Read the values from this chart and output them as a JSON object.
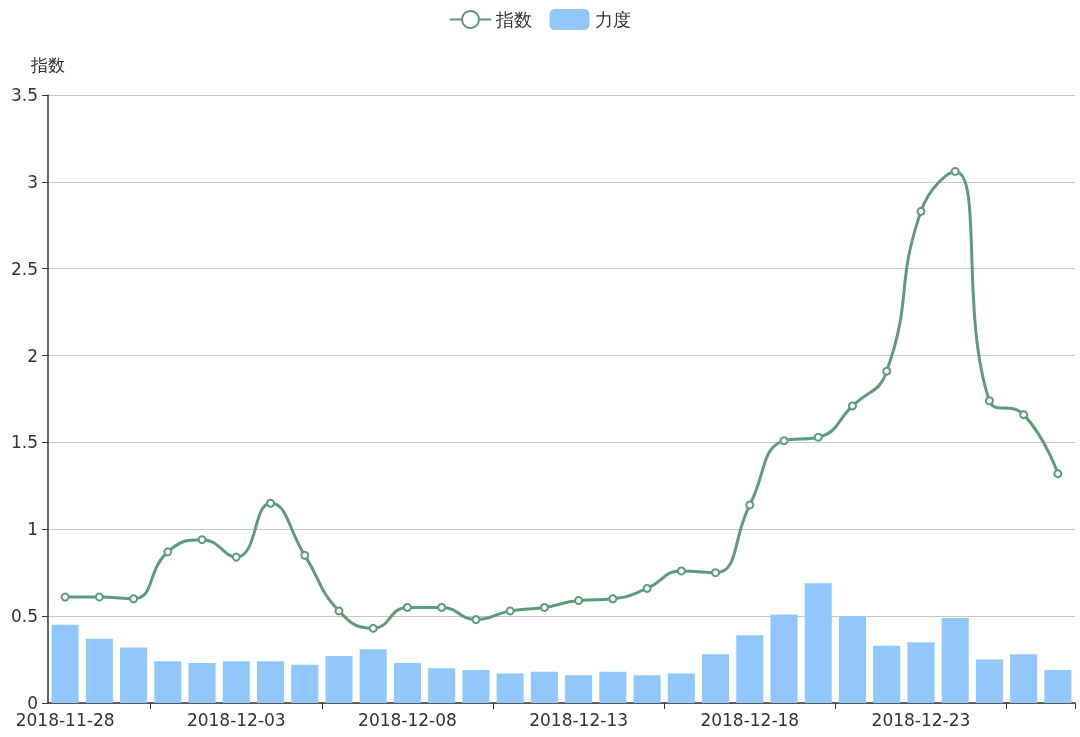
{
  "chart_data": {
    "type": "bar",
    "ylabel": "指数",
    "categories": [
      "2018-11-28",
      null,
      null,
      null,
      null,
      "2018-12-03",
      null,
      null,
      null,
      null,
      "2018-12-08",
      null,
      null,
      null,
      null,
      "2018-12-13",
      null,
      null,
      null,
      null,
      "2018-12-18",
      null,
      null,
      null,
      null,
      "2018-12-23",
      null,
      null,
      null,
      null
    ],
    "series": [
      {
        "name": "指数",
        "type": "line",
        "color": "#5d9c7a",
        "values": [
          0.61,
          0.61,
          0.6,
          0.87,
          0.94,
          0.84,
          1.15,
          0.85,
          0.53,
          0.43,
          0.55,
          0.55,
          0.48,
          0.53,
          0.55,
          0.59,
          0.6,
          0.66,
          0.76,
          0.75,
          1.14,
          1.51,
          1.53,
          1.71,
          1.91,
          2.83,
          3.06,
          1.74,
          1.66,
          1.32
        ]
      },
      {
        "name": "力度",
        "type": "bar",
        "color": "#91c7fa",
        "values": [
          0.45,
          0.37,
          0.32,
          0.24,
          0.23,
          0.24,
          0.24,
          0.22,
          0.27,
          0.31,
          0.23,
          0.2,
          0.19,
          0.17,
          0.18,
          0.16,
          0.18,
          0.16,
          0.17,
          0.28,
          0.39,
          0.51,
          0.69,
          0.5,
          0.33,
          0.35,
          0.49,
          0.25,
          0.28,
          0.19
        ]
      }
    ],
    "ylim": [
      0,
      3.5
    ],
    "yticks": [
      0,
      0.5,
      1,
      1.5,
      2,
      2.5,
      3,
      3.5
    ],
    "grid": "y",
    "legend": "top",
    "marker": "circle"
  }
}
